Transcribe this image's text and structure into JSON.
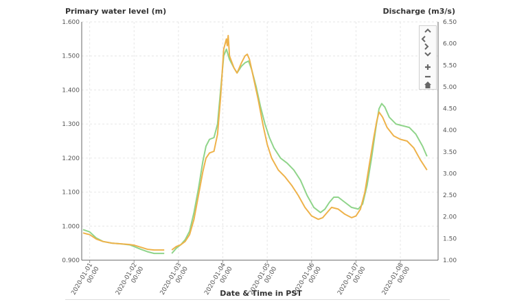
{
  "chart_data": {
    "type": "line",
    "xlabel": "Date & Time in PST",
    "ylabel_left": "Primary water level (m)",
    "ylabel_right": "Discharge (m3/s)",
    "left_ylim": [
      0.9,
      1.6
    ],
    "right_ylim": [
      1.0,
      6.5
    ],
    "left_ticks": [
      "0.900",
      "1.000",
      "1.100",
      "1.200",
      "1.300",
      "1.400",
      "1.500",
      "1.600"
    ],
    "right_ticks": [
      "1.00",
      "1.50",
      "2.00",
      "2.50",
      "3.00",
      "3.50",
      "4.00",
      "4.50",
      "5.00",
      "5.50",
      "6.00",
      "6.50"
    ],
    "x_ticks": [
      {
        "day": 0,
        "date": "2020-01-01",
        "time": "00:00"
      },
      {
        "day": 1,
        "date": "2020-01-02",
        "time": "00:00"
      },
      {
        "day": 2,
        "date": "2020-01-03",
        "time": "00:00"
      },
      {
        "day": 3,
        "date": "2020-01-04",
        "time": "00:00"
      },
      {
        "day": 4,
        "date": "2020-01-05",
        "time": "00:00"
      },
      {
        "day": 5,
        "date": "2020-01-06",
        "time": "00:00"
      },
      {
        "day": 6,
        "date": "2020-01-07",
        "time": "00:00"
      },
      {
        "day": 7,
        "date": "2020-01-08",
        "time": "00:00"
      }
    ],
    "x_range_days": [
      -0.18,
      7.85
    ],
    "grid": true,
    "series": [
      {
        "axis": "left",
        "color": "#8fd48a",
        "segments": [
          [
            [
              -0.15,
              0.99
            ],
            [
              0.0,
              0.983
            ],
            [
              0.15,
              0.965
            ],
            [
              0.3,
              0.955
            ],
            [
              0.5,
              0.95
            ],
            [
              0.7,
              0.948
            ],
            [
              0.9,
              0.945
            ],
            [
              1.0,
              0.94
            ],
            [
              1.15,
              0.932
            ],
            [
              1.3,
              0.925
            ],
            [
              1.45,
              0.92
            ],
            [
              1.6,
              0.92
            ],
            [
              1.68,
              0.92
            ]
          ],
          [
            [
              1.85,
              0.92
            ],
            [
              1.95,
              0.935
            ],
            [
              2.05,
              0.945
            ],
            [
              2.15,
              0.96
            ],
            [
              2.25,
              0.985
            ],
            [
              2.35,
              1.04
            ],
            [
              2.45,
              1.11
            ],
            [
              2.55,
              1.19
            ],
            [
              2.62,
              1.235
            ],
            [
              2.7,
              1.255
            ],
            [
              2.8,
              1.26
            ],
            [
              2.88,
              1.3
            ],
            [
              2.95,
              1.4
            ],
            [
              3.02,
              1.5
            ],
            [
              3.08,
              1.52
            ],
            [
              3.15,
              1.49
            ],
            [
              3.25,
              1.465
            ],
            [
              3.32,
              1.45
            ],
            [
              3.42,
              1.47
            ],
            [
              3.5,
              1.48
            ],
            [
              3.58,
              1.485
            ],
            [
              3.65,
              1.46
            ],
            [
              3.75,
              1.41
            ],
            [
              3.85,
              1.35
            ],
            [
              3.95,
              1.3
            ],
            [
              4.05,
              1.26
            ],
            [
              4.15,
              1.23
            ],
            [
              4.3,
              1.2
            ],
            [
              4.45,
              1.185
            ],
            [
              4.6,
              1.165
            ],
            [
              4.75,
              1.135
            ],
            [
              4.9,
              1.09
            ],
            [
              5.05,
              1.055
            ],
            [
              5.2,
              1.04
            ],
            [
              5.3,
              1.05
            ],
            [
              5.4,
              1.07
            ],
            [
              5.5,
              1.085
            ],
            [
              5.6,
              1.085
            ],
            [
              5.75,
              1.07
            ],
            [
              5.9,
              1.055
            ],
            [
              6.05,
              1.05
            ],
            [
              6.15,
              1.065
            ],
            [
              6.25,
              1.12
            ],
            [
              6.35,
              1.2
            ],
            [
              6.45,
              1.29
            ],
            [
              6.52,
              1.345
            ],
            [
              6.58,
              1.36
            ],
            [
              6.65,
              1.35
            ],
            [
              6.75,
              1.32
            ],
            [
              6.9,
              1.3
            ],
            [
              7.05,
              1.295
            ],
            [
              7.2,
              1.29
            ],
            [
              7.35,
              1.27
            ],
            [
              7.5,
              1.235
            ],
            [
              7.6,
              1.205
            ]
          ]
        ]
      },
      {
        "axis": "left",
        "color": "#eeb24a",
        "segments": [
          [
            [
              -0.15,
              0.98
            ],
            [
              0.0,
              0.975
            ],
            [
              0.15,
              0.962
            ],
            [
              0.3,
              0.955
            ],
            [
              0.5,
              0.95
            ],
            [
              0.7,
              0.948
            ],
            [
              0.9,
              0.946
            ],
            [
              1.0,
              0.944
            ],
            [
              1.15,
              0.938
            ],
            [
              1.3,
              0.932
            ],
            [
              1.45,
              0.93
            ],
            [
              1.6,
              0.93
            ],
            [
              1.68,
              0.93
            ]
          ],
          [
            [
              1.85,
              0.93
            ],
            [
              1.95,
              0.94
            ],
            [
              2.05,
              0.945
            ],
            [
              2.15,
              0.955
            ],
            [
              2.25,
              0.975
            ],
            [
              2.35,
              1.02
            ],
            [
              2.45,
              1.09
            ],
            [
              2.55,
              1.16
            ],
            [
              2.62,
              1.2
            ],
            [
              2.7,
              1.215
            ],
            [
              2.8,
              1.22
            ],
            [
              2.88,
              1.27
            ],
            [
              2.95,
              1.38
            ],
            [
              3.02,
              1.52
            ],
            [
              3.08,
              1.55
            ],
            [
              3.1,
              1.53
            ],
            [
              3.12,
              1.56
            ],
            [
              3.15,
              1.5
            ],
            [
              3.25,
              1.465
            ],
            [
              3.32,
              1.45
            ],
            [
              3.42,
              1.48
            ],
            [
              3.5,
              1.5
            ],
            [
              3.55,
              1.505
            ],
            [
              3.6,
              1.49
            ],
            [
              3.7,
              1.43
            ],
            [
              3.8,
              1.37
            ],
            [
              3.9,
              1.3
            ],
            [
              4.0,
              1.24
            ],
            [
              4.1,
              1.2
            ],
            [
              4.25,
              1.165
            ],
            [
              4.4,
              1.145
            ],
            [
              4.55,
              1.12
            ],
            [
              4.7,
              1.09
            ],
            [
              4.85,
              1.055
            ],
            [
              5.0,
              1.03
            ],
            [
              5.15,
              1.02
            ],
            [
              5.25,
              1.025
            ],
            [
              5.35,
              1.04
            ],
            [
              5.45,
              1.055
            ],
            [
              5.6,
              1.05
            ],
            [
              5.75,
              1.035
            ],
            [
              5.9,
              1.025
            ],
            [
              6.0,
              1.03
            ],
            [
              6.1,
              1.05
            ],
            [
              6.2,
              1.1
            ],
            [
              6.3,
              1.18
            ],
            [
              6.4,
              1.26
            ],
            [
              6.47,
              1.31
            ],
            [
              6.52,
              1.335
            ],
            [
              6.6,
              1.32
            ],
            [
              6.7,
              1.29
            ],
            [
              6.85,
              1.265
            ],
            [
              7.0,
              1.255
            ],
            [
              7.15,
              1.25
            ],
            [
              7.3,
              1.23
            ],
            [
              7.45,
              1.195
            ],
            [
              7.6,
              1.165
            ]
          ]
        ]
      }
    ]
  },
  "icons": [
    "chevron-up-icon",
    "chevron-left-icon",
    "chevron-right-icon",
    "chevron-down-icon",
    "zoom-in-icon",
    "zoom-out-icon",
    "home-icon"
  ]
}
